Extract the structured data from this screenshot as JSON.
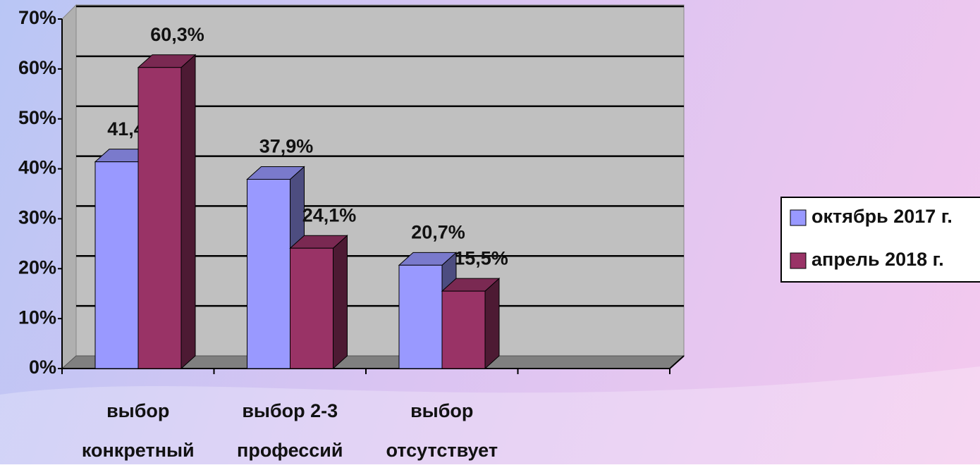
{
  "chart_data": {
    "type": "bar3d",
    "categories": [
      "выбор конкретный",
      "выбор 2-3 профессий",
      "выбор отсутствует",
      null
    ],
    "series": [
      {
        "name": "октябрь 2017 г.",
        "color": "#9999ff",
        "values": [
          41.4,
          37.9,
          20.7,
          null
        ],
        "value_labels": [
          "41,4%",
          "37,9%",
          "20,7%",
          null
        ]
      },
      {
        "name": "апрель 2018 г.",
        "color": "#993366",
        "values": [
          60.3,
          24.1,
          15.5,
          null
        ],
        "value_labels": [
          "60,3%",
          "24,1%",
          "15,5%",
          null
        ]
      }
    ],
    "ylim": [
      0,
      70
    ],
    "yticks": [
      {
        "value": 0,
        "label": "0%"
      },
      {
        "value": 10,
        "label": "10%"
      },
      {
        "value": 20,
        "label": "20%"
      },
      {
        "value": 30,
        "label": "30%"
      },
      {
        "value": 40,
        "label": "40%"
      },
      {
        "value": 50,
        "label": "50%"
      },
      {
        "value": 60,
        "label": "60%"
      },
      {
        "value": 70,
        "label": "70%"
      }
    ],
    "grid": true,
    "legend": "right"
  }
}
